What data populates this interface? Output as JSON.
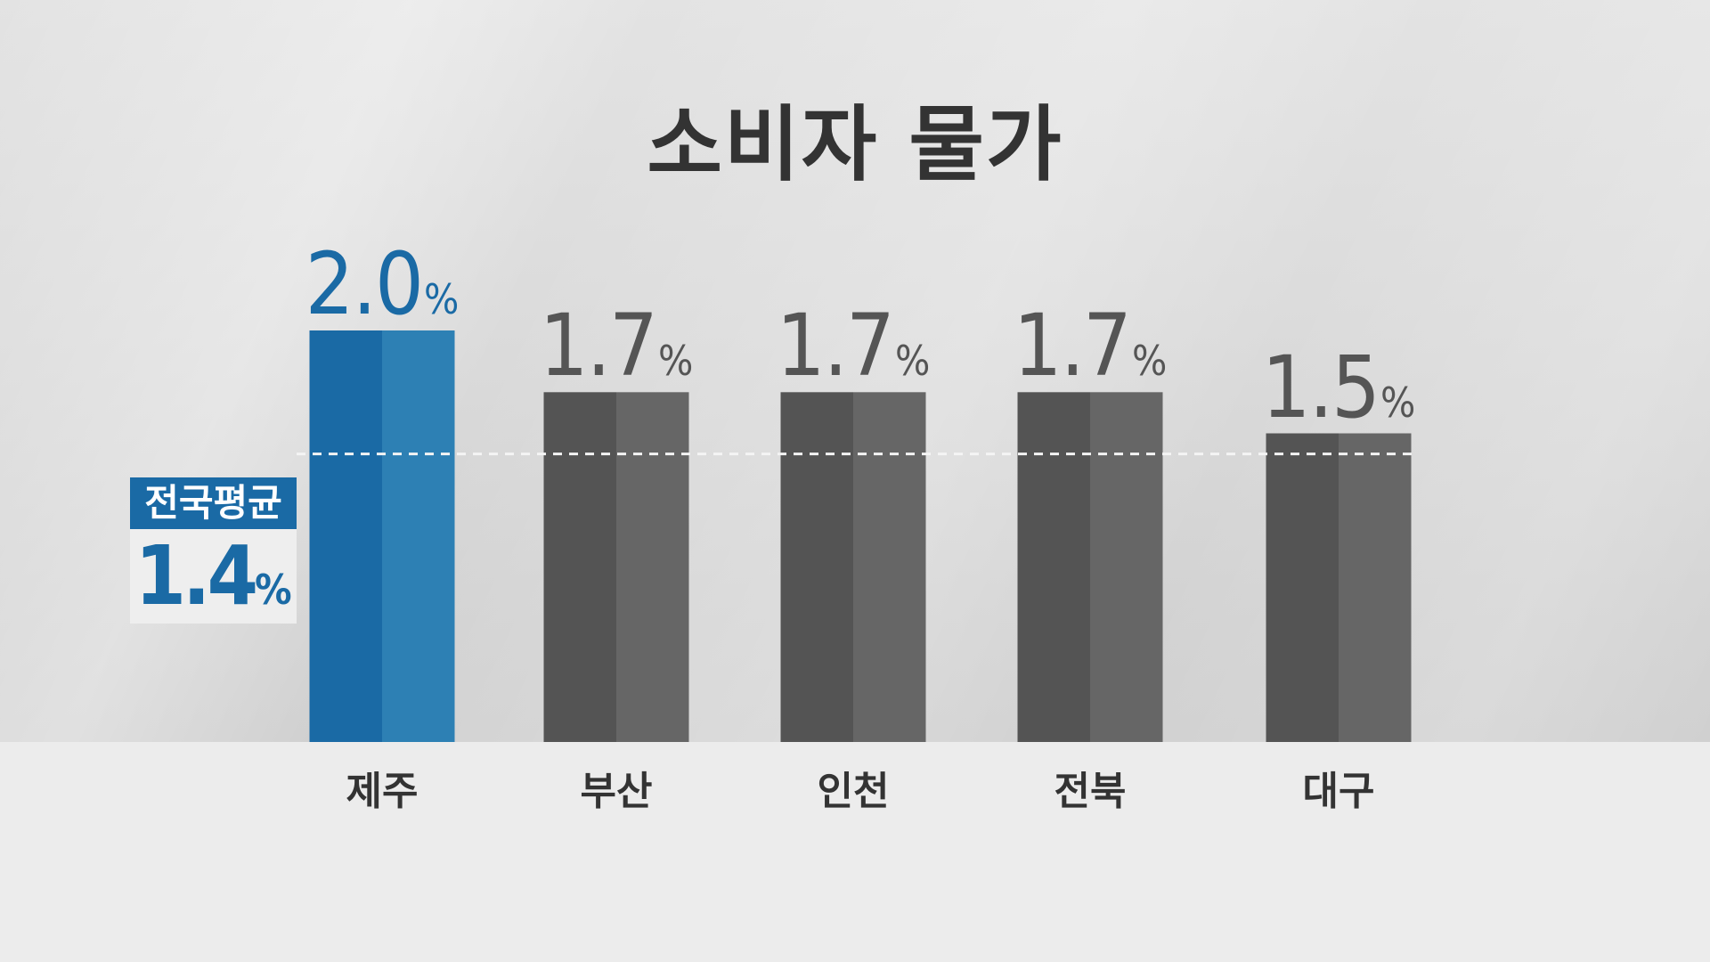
{
  "chart_data": {
    "type": "bar",
    "title": "소비자 물가",
    "categories": [
      "제주",
      "부산",
      "인천",
      "전북",
      "대구"
    ],
    "values": [
      2.0,
      1.7,
      1.7,
      1.7,
      1.5
    ],
    "value_labels": [
      "2.0",
      "1.7",
      "1.7",
      "1.7",
      "1.5"
    ],
    "unit": "%",
    "highlight_index": 0,
    "reference_line": {
      "label": "전국평균",
      "value": 1.4,
      "value_label": "1.4"
    },
    "ylim": [
      0,
      2.0
    ],
    "grid": false
  },
  "colors": {
    "highlight_bar": "#1a6aa5",
    "highlight_bar_light": "#2d80b4",
    "bar": "#545454",
    "bar_light": "#666666",
    "highlight_text": "#1a6aa5",
    "value_text": "#555555",
    "reference_line": "#f4f4f4"
  }
}
